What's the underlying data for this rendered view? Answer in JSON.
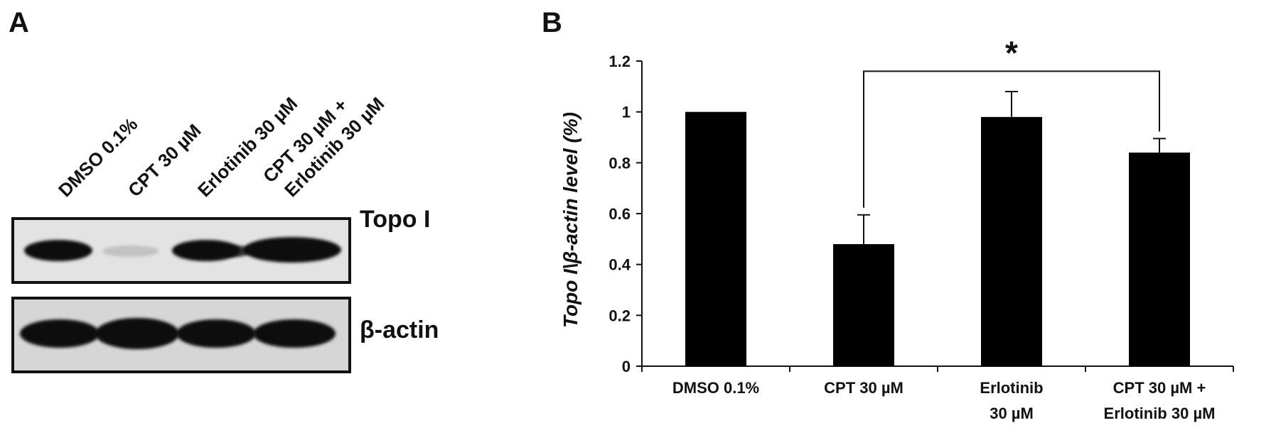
{
  "panels": {
    "a_label": "A",
    "b_label": "B"
  },
  "blot": {
    "lanes": [
      "DMSO 0.1%",
      "CPT 30 µM",
      "Erlotinib 30 µM",
      "CPT 30 µM +",
      "Erlotinib 30 µM"
    ],
    "row_labels": [
      "Topo I",
      "β-actin"
    ],
    "topo_intensity": [
      1.0,
      0.15,
      0.95,
      1.0
    ],
    "actin_intensity": [
      1.0,
      1.0,
      1.0,
      1.0
    ]
  },
  "chart_data": {
    "type": "bar",
    "categories": [
      [
        "DMSO 0.1%"
      ],
      [
        "CPT 30 µM"
      ],
      [
        "Erlotinib",
        "30 µM"
      ],
      [
        "CPT 30 µM +",
        "Erlotinib 30 µM"
      ]
    ],
    "values": [
      1.0,
      0.48,
      0.98,
      0.84
    ],
    "error_upper": [
      0.0,
      0.115,
      0.1,
      0.055
    ],
    "ylabel": "Topo I\\β-actin level (%)",
    "ylim": [
      0,
      1.2
    ],
    "yticks": [
      0,
      0.2,
      0.4,
      0.6,
      0.8,
      1,
      1.2
    ],
    "ytick_labels": [
      "0",
      "0.2",
      "0.4",
      "0.6",
      "0.8",
      "1",
      "1.2"
    ],
    "significance": {
      "from": 1,
      "to": 3,
      "label": "*",
      "y": 1.16
    },
    "grid": false,
    "bar_color": "#000000"
  }
}
